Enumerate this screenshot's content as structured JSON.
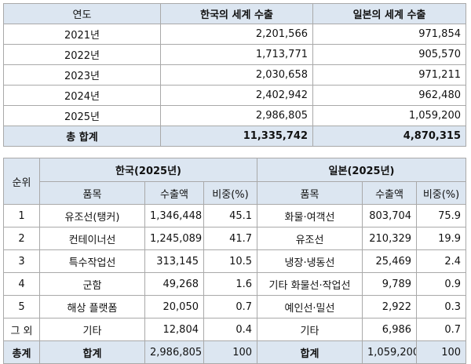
{
  "table1": {
    "headers": [
      "연도",
      "한국의 세계 수출",
      "일본의 세계 수출"
    ],
    "rows": [
      {
        "year": "2021년",
        "korea": "2,201,566",
        "japan": "971,854"
      },
      {
        "year": "2022년",
        "korea": "1,713,771",
        "japan": "905,570"
      },
      {
        "year": "2023년",
        "korea": "2,030,658",
        "japan": "971,211"
      },
      {
        "year": "2024년",
        "korea": "2,402,942",
        "japan": "962,480"
      },
      {
        "year": "2025년",
        "korea": "2,986,805",
        "japan": "1,059,200"
      }
    ],
    "total": {
      "label": "총 합계",
      "korea": "11,335,742",
      "japan": "4,870,315"
    }
  },
  "table2": {
    "rank_header": "순위",
    "korea_group": "한국(2025년)",
    "japan_group": "일본(2025년)",
    "sub_headers": {
      "item": "품목",
      "amount": "수출액",
      "share": "비중(%)"
    },
    "rows": [
      {
        "rank": "1",
        "k_item": "유조선(탱커)",
        "k_amount": "1,346,448",
        "k_share": "45.1",
        "j_item": "화물·여객선",
        "j_amount": "803,704",
        "j_share": "75.9"
      },
      {
        "rank": "2",
        "k_item": "컨테이너선",
        "k_amount": "1,245,089",
        "k_share": "41.7",
        "j_item": "유조선",
        "j_amount": "210,329",
        "j_share": "19.9"
      },
      {
        "rank": "3",
        "k_item": "특수작업선",
        "k_amount": "313,145",
        "k_share": "10.5",
        "j_item": "냉장·냉동선",
        "j_amount": "25,469",
        "j_share": "2.4"
      },
      {
        "rank": "4",
        "k_item": "군함",
        "k_amount": "49,268",
        "k_share": "1.6",
        "j_item": "기타 화물선·작업선",
        "j_amount": "9,789",
        "j_share": "0.9"
      },
      {
        "rank": "5",
        "k_item": "해상 플랫폼",
        "k_amount": "20,050",
        "k_share": "0.7",
        "j_item": "예인선·밀선",
        "j_amount": "2,922",
        "j_share": "0.3"
      },
      {
        "rank": "그 외",
        "k_item": "기타",
        "k_amount": "12,804",
        "k_share": "0.4",
        "j_item": "기타",
        "j_amount": "6,986",
        "j_share": "0.7"
      }
    ],
    "total": {
      "label": "총계",
      "k_item": "합계",
      "k_amount": "2,986,805",
      "k_share": "100",
      "j_item": "합계",
      "j_amount": "1,059,200",
      "j_share": "100"
    }
  }
}
